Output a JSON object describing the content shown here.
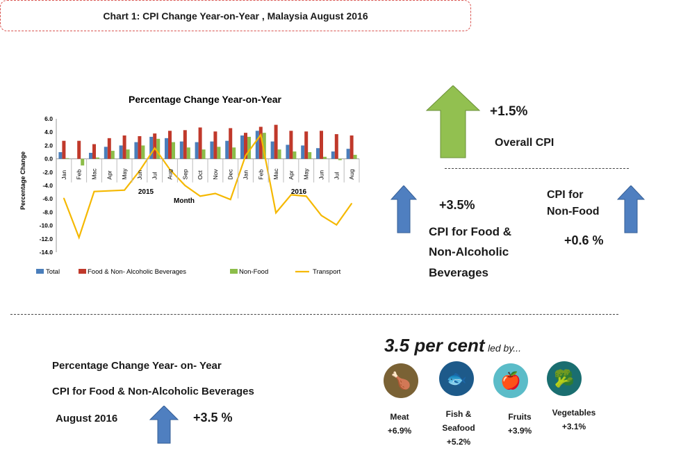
{
  "header": {
    "title": "Chart 1: CPI  Change Year-on-Year , Malaysia  August 2016"
  },
  "summary": {
    "overall_value": "+1.5%",
    "overall_label": "Overall CPI",
    "food_value": "+3.5%",
    "food_label_1": "CPI for Food &",
    "food_label_2": "Non-Alcoholic",
    "food_label_3": "Beverages",
    "nonfood_label_1": "CPI for",
    "nonfood_label_2": "Non-Food",
    "nonfood_value": "+0.6 %"
  },
  "bottom": {
    "line1": "Percentage Change Year- on- Year",
    "line2": "CPI for Food & Non-Alcoholic Beverages",
    "line3": "August 2016",
    "value": "+3.5 %",
    "headline_big": "3.5 per cent",
    "headline_small": "led by...",
    "items": [
      {
        "name": "Meat",
        "value": "+6.9%",
        "color": "#7a6235",
        "icon": "chicken-icon"
      },
      {
        "name": "Fish &",
        "name2": "Seafood",
        "value": "+5.2%",
        "color": "#1d5a8a",
        "icon": "fish-icon"
      },
      {
        "name": "Fruits",
        "value": "+3.9%",
        "color": "#5bbcc8",
        "icon": "apple-icon"
      },
      {
        "name": "Vegetables",
        "value": "+3.1%",
        "color": "#1a6e70",
        "icon": "broccoli-icon"
      }
    ]
  },
  "chart_data": {
    "type": "bar",
    "title": "Percentage Change Year-on-Year",
    "xlabel": "Month",
    "ylabel": "Percentage Change",
    "ylim": [
      -14,
      6
    ],
    "yticks": [
      "6.0",
      "4.0",
      "2.0",
      "0.0",
      "-2.0",
      "-4.0",
      "-6.0",
      "-8.0",
      "-10.0",
      "-12.0",
      "-14.0"
    ],
    "categories": [
      "Jan",
      "Feb",
      "Mac",
      "Apr",
      "May",
      "Jun",
      "Jul",
      "Aug",
      "Sep",
      "Oct",
      "Nov",
      "Dec",
      "Jan",
      "Feb",
      "Mac",
      "Apr",
      "May",
      "Jun",
      "Jul",
      "Aug"
    ],
    "years": [
      "2015",
      "2016"
    ],
    "legend_position": "bottom",
    "series": [
      {
        "name": "Total",
        "type": "bar",
        "color": "#4a7ebb",
        "values": [
          1.0,
          0.0,
          0.9,
          1.8,
          2.0,
          2.5,
          3.3,
          3.1,
          2.6,
          2.5,
          2.6,
          2.7,
          3.5,
          4.2,
          2.6,
          2.1,
          2.0,
          1.6,
          1.1,
          1.5
        ]
      },
      {
        "name": "Food & Non- Alcoholic Beverages",
        "type": "bar",
        "color": "#c0392b",
        "values": [
          2.7,
          2.7,
          2.2,
          3.1,
          3.5,
          3.4,
          3.8,
          4.2,
          4.3,
          4.7,
          4.1,
          4.6,
          3.9,
          4.8,
          5.1,
          4.2,
          4.1,
          4.2,
          3.7,
          3.5
        ]
      },
      {
        "name": "Non-Food",
        "type": "bar",
        "color": "#8cbd4a",
        "values": [
          0.1,
          -1.0,
          0.2,
          1.2,
          1.4,
          2.0,
          3.0,
          2.5,
          1.7,
          1.4,
          1.8,
          1.7,
          3.3,
          3.9,
          1.4,
          1.1,
          1.0,
          0.3,
          -0.2,
          0.6
        ]
      },
      {
        "name": "Transport",
        "type": "line",
        "color": "#f5b800",
        "values": [
          -5.9,
          -11.8,
          -4.9,
          -4.8,
          -4.7,
          -1.8,
          1.6,
          -1.6,
          -4.0,
          -5.6,
          -5.2,
          -6.1,
          0.5,
          3.6,
          -8.1,
          -5.4,
          -5.6,
          -8.5,
          -9.9,
          -6.7
        ]
      }
    ]
  }
}
